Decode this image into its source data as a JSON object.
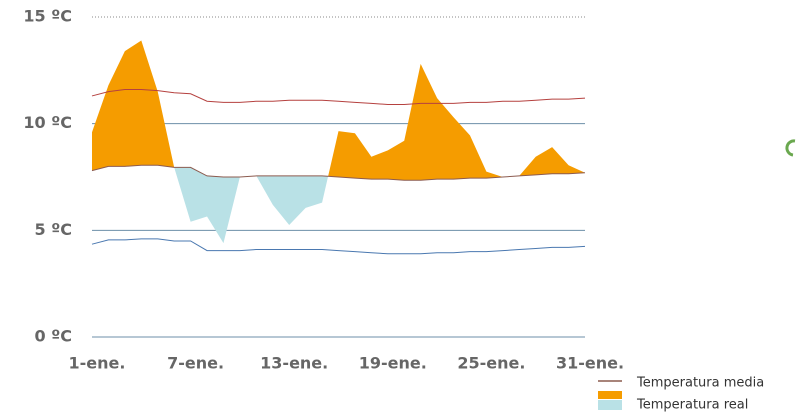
{
  "chart_data": {
    "type": "temperature_band",
    "categories": [
      "1-ene.",
      null,
      null,
      null,
      null,
      null,
      "7-ene.",
      null,
      null,
      null,
      null,
      null,
      "13-ene.",
      null,
      null,
      null,
      null,
      null,
      "19-ene.",
      null,
      null,
      null,
      null,
      null,
      "25-ene.",
      null,
      null,
      null,
      null,
      null,
      "31-ene."
    ],
    "series": [
      {
        "name": "Temperatura real",
        "colors": [
          "#f59c00",
          "#b9e1e6"
        ],
        "values": [
          9.6,
          11.8,
          13.4,
          13.9,
          11.5,
          7.95,
          5.4,
          5.65,
          4.4,
          7.5,
          7.55,
          6.2,
          5.25,
          6.05,
          6.3,
          9.65,
          9.55,
          8.45,
          8.75,
          9.2,
          12.8,
          11.2,
          10.3,
          9.45,
          7.75,
          7.5,
          7.55,
          8.45,
          8.9,
          8.05,
          7.7
        ]
      },
      {
        "name": "Temperatura media",
        "color": "#8c5b4f",
        "values": [
          7.8,
          8.0,
          8.0,
          8.05,
          8.05,
          7.95,
          7.95,
          7.55,
          7.5,
          7.5,
          7.55,
          7.55,
          7.55,
          7.55,
          7.55,
          7.5,
          7.45,
          7.4,
          7.4,
          7.35,
          7.35,
          7.4,
          7.4,
          7.45,
          7.45,
          7.5,
          7.55,
          7.6,
          7.65,
          7.65,
          7.7
        ]
      },
      {
        "color": "#b5413f",
        "values": [
          11.3,
          11.5,
          11.6,
          11.6,
          11.55,
          11.45,
          11.4,
          11.05,
          11.0,
          11.0,
          11.05,
          11.05,
          11.1,
          11.1,
          11.1,
          11.05,
          11.0,
          10.95,
          10.9,
          10.9,
          10.95,
          10.95,
          10.95,
          11.0,
          11.0,
          11.05,
          11.05,
          11.1,
          11.15,
          11.15,
          11.2
        ]
      },
      {
        "color": "#4a78b0",
        "values": [
          4.35,
          4.55,
          4.55,
          4.6,
          4.6,
          4.5,
          4.5,
          4.05,
          4.05,
          4.05,
          4.1,
          4.1,
          4.1,
          4.1,
          4.1,
          4.05,
          4.0,
          3.95,
          3.9,
          3.9,
          3.9,
          3.95,
          3.95,
          4.0,
          4.0,
          4.05,
          4.1,
          4.15,
          4.2,
          4.2,
          4.25
        ]
      }
    ],
    "ylim": [
      0,
      15
    ],
    "yticks": [
      {
        "value": 0,
        "label": "0 ºC"
      },
      {
        "value": 5,
        "label": "5 ºC"
      },
      {
        "value": 10,
        "label": "10 ºC"
      },
      {
        "value": 15,
        "label": "15 ºC"
      }
    ]
  }
}
